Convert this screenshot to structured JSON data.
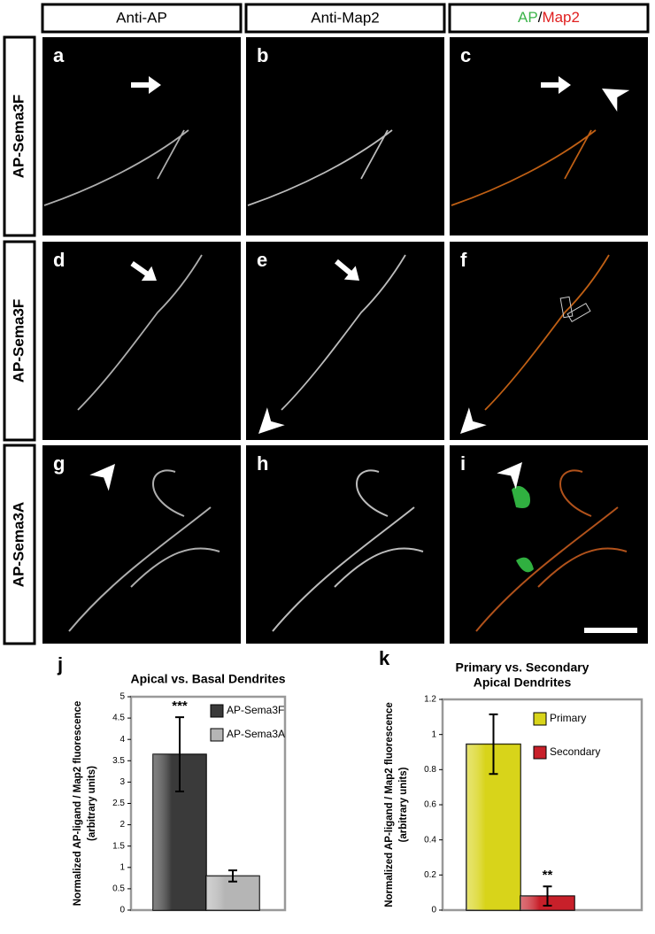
{
  "figure": {
    "columns": [
      "Anti-AP",
      "Anti-Map2"
    ],
    "merge_header": {
      "green": "AP",
      "sep": "/",
      "red": "Map2"
    },
    "rows": [
      "AP-Sema3F",
      "AP-Sema3F",
      "AP-Sema3A"
    ],
    "panels": [
      "a",
      "b",
      "c",
      "d",
      "e",
      "f",
      "g",
      "h",
      "i"
    ]
  },
  "chart_data": [
    {
      "type": "bar",
      "letter": "j",
      "title": [
        "Apical vs. Basal Dendrites"
      ],
      "y_label": [
        "Normalized AP-ligand / Map2 fluorescence",
        "(arbitrary units)"
      ],
      "ylim": [
        0,
        5
      ],
      "yticks": [
        0,
        0.5,
        1,
        1.5,
        2,
        2.5,
        3,
        3.5,
        4,
        4.5,
        5
      ],
      "series": [
        {
          "name": "AP-Sema3F",
          "color": "#3a3a3a",
          "values": [
            3.65
          ],
          "errors": [
            0.87
          ]
        },
        {
          "name": "AP-Sema3A",
          "color": "#b5b5b5",
          "values": [
            0.8
          ],
          "errors": [
            0.13
          ]
        }
      ],
      "annotations": [
        {
          "text": "***",
          "series": 0
        }
      ],
      "legend": "top-right"
    },
    {
      "type": "bar",
      "letter": "k",
      "title": [
        "Primary vs. Secondary",
        "Apical Dendrites"
      ],
      "y_label": [
        "Normalized AP-ligand / Map2 fluorescence",
        "(arbitrary units)"
      ],
      "ylim": [
        0,
        1.2
      ],
      "yticks": [
        0,
        0.2,
        0.4,
        0.6,
        0.8,
        1,
        1.2
      ],
      "series": [
        {
          "name": "Primary",
          "color": "#d8d41a",
          "values": [
            0.945
          ],
          "errors": [
            0.17
          ]
        },
        {
          "name": "Secondary",
          "color": "#c8202a",
          "values": [
            0.08
          ],
          "errors": [
            0.055
          ]
        }
      ],
      "annotations": [
        {
          "text": "**",
          "series": 1
        }
      ],
      "legend": "top-right"
    }
  ]
}
